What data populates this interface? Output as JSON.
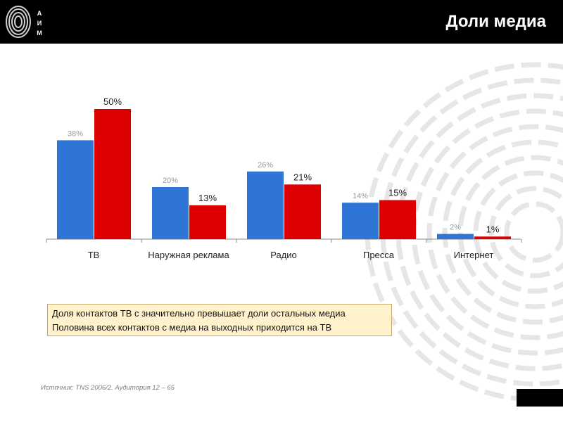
{
  "header": {
    "title": "Доли медиа",
    "logo_letters": "А И М"
  },
  "chart_data": {
    "type": "bar",
    "categories": [
      "ТВ",
      "Наружная реклама",
      "Радио",
      "Пресса",
      "Интернет"
    ],
    "series": [
      {
        "values": [
          38,
          20,
          26,
          14,
          2
        ],
        "labels": [
          "38%",
          "20%",
          "26%",
          "14%",
          "2%"
        ],
        "color": "#2e75d6"
      },
      {
        "values": [
          50,
          13,
          21,
          15,
          1
        ],
        "labels": [
          "50%",
          "13%",
          "21%",
          "15%",
          "1%"
        ],
        "color": "#dd0000"
      }
    ],
    "ylim": [
      0,
      50
    ],
    "grid": false,
    "legend": "none"
  },
  "info": {
    "lines": [
      "Доля контактов ТВ с значительно превышает доли остальных медиа",
      "Половина всех контактов с медиа на выходных приходится на ТВ"
    ]
  },
  "source": "Источник: TNS 2006/2. Аудитория 12 – 65",
  "colors": {
    "header_bg": "#000000",
    "box_bg": "#fff2cc",
    "box_border": "#c9a86b"
  }
}
